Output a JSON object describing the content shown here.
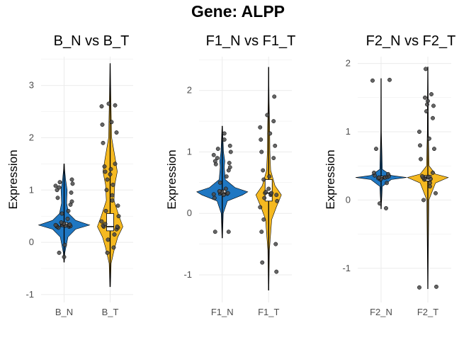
{
  "figure": {
    "title": "Gene: ALPP"
  },
  "colors": {
    "normal": "#1f77c2",
    "tumor": "#f5b921",
    "point": "#4a4a4a",
    "grid": "#ebebeb",
    "box": "#ffffff"
  },
  "chart_data": [
    {
      "type": "violin",
      "title": "B_N vs B_T",
      "ylabel": "Expression",
      "ylim": [
        -1.15,
        3.55
      ],
      "yticks": [
        -1,
        0,
        1,
        2,
        3
      ],
      "categories": [
        "B_N",
        "B_T"
      ],
      "groups": [
        {
          "name": "B_N",
          "color": "#1f77c2",
          "min": -0.38,
          "max": 1.5,
          "box": {
            "q1": 0.3,
            "median": 0.33,
            "q3": 0.38
          },
          "density": [
            [
              -0.38,
              0.01
            ],
            [
              -0.2,
              0.03
            ],
            [
              0.1,
              0.15
            ],
            [
              0.25,
              0.45
            ],
            [
              0.33,
              1.0
            ],
            [
              0.42,
              0.45
            ],
            [
              0.55,
              0.18
            ],
            [
              0.75,
              0.1
            ],
            [
              1.0,
              0.12
            ],
            [
              1.2,
              0.06
            ],
            [
              1.4,
              0.02
            ],
            [
              1.5,
              0.01
            ]
          ],
          "points": [
            -0.28,
            -0.2,
            -0.05,
            0.28,
            0.3,
            0.3,
            0.31,
            0.32,
            0.32,
            0.33,
            0.33,
            0.33,
            0.34,
            0.35,
            0.36,
            0.38,
            0.45,
            0.55,
            0.6,
            0.72,
            0.78,
            0.85,
            0.95,
            1.0,
            1.05,
            1.08,
            1.12,
            1.15,
            1.2
          ]
        },
        {
          "name": "B_T",
          "color": "#f5b921",
          "min": -0.85,
          "max": 3.42,
          "box": {
            "q1": 0.22,
            "median": 0.3,
            "q3": 0.55
          },
          "density": [
            [
              -0.85,
              0.01
            ],
            [
              -0.4,
              0.04
            ],
            [
              -0.1,
              0.18
            ],
            [
              0.1,
              0.3
            ],
            [
              0.3,
              0.5
            ],
            [
              0.5,
              0.35
            ],
            [
              0.8,
              0.15
            ],
            [
              1.1,
              0.18
            ],
            [
              1.35,
              0.28
            ],
            [
              1.6,
              0.2
            ],
            [
              2.0,
              0.06
            ],
            [
              2.5,
              0.04
            ],
            [
              3.0,
              0.02
            ],
            [
              3.42,
              0.005
            ]
          ],
          "points": [
            -0.2,
            -0.1,
            0.05,
            0.15,
            0.25,
            0.28,
            0.3,
            0.3,
            0.32,
            0.35,
            0.4,
            0.5,
            0.6,
            0.7,
            0.8,
            0.9,
            1.0,
            1.1,
            1.2,
            1.3,
            1.35,
            1.4,
            1.45,
            1.5,
            1.9,
            2.1,
            2.25,
            2.3,
            2.6,
            2.62,
            2.65
          ]
        }
      ]
    },
    {
      "type": "violin",
      "title": "F1_N vs F1_T",
      "ylabel": "Expression",
      "ylim": [
        -1.45,
        2.55
      ],
      "yticks": [
        -1,
        0,
        1,
        2
      ],
      "categories": [
        "F1_N",
        "F1_T"
      ],
      "groups": [
        {
          "name": "F1_N",
          "color": "#1f77c2",
          "min": -0.4,
          "max": 1.42,
          "box": {
            "q1": 0.3,
            "median": 0.33,
            "q3": 0.38
          },
          "density": [
            [
              -0.4,
              0.01
            ],
            [
              0.0,
              0.04
            ],
            [
              0.2,
              0.2
            ],
            [
              0.3,
              0.8
            ],
            [
              0.35,
              1.0
            ],
            [
              0.42,
              0.5
            ],
            [
              0.55,
              0.12
            ],
            [
              0.75,
              0.08
            ],
            [
              0.85,
              0.1
            ],
            [
              1.0,
              0.05
            ],
            [
              1.2,
              0.03
            ],
            [
              1.42,
              0.01
            ]
          ],
          "points": [
            -0.3,
            -0.3,
            0.25,
            0.3,
            0.31,
            0.32,
            0.33,
            0.33,
            0.34,
            0.35,
            0.36,
            0.4,
            0.5,
            0.6,
            0.7,
            0.75,
            0.8,
            0.82,
            0.85,
            0.9,
            0.95,
            1.0,
            1.05,
            1.1,
            1.2,
            1.3
          ]
        },
        {
          "name": "F1_T",
          "color": "#f5b921",
          "min": -1.25,
          "max": 2.38,
          "box": {
            "q1": 0.2,
            "median": 0.33,
            "q3": 0.55
          },
          "density": [
            [
              -1.25,
              0.01
            ],
            [
              -0.6,
              0.03
            ],
            [
              -0.1,
              0.12
            ],
            [
              0.1,
              0.3
            ],
            [
              0.3,
              0.5
            ],
            [
              0.45,
              0.25
            ],
            [
              0.7,
              0.08
            ],
            [
              1.0,
              0.05
            ],
            [
              1.4,
              0.04
            ],
            [
              1.8,
              0.02
            ],
            [
              2.38,
              0.005
            ]
          ],
          "points": [
            -0.95,
            -0.8,
            -0.5,
            -0.3,
            -0.1,
            0.1,
            0.2,
            0.25,
            0.3,
            0.3,
            0.32,
            0.33,
            0.33,
            0.35,
            0.4,
            0.55,
            0.6,
            0.7,
            0.9,
            1.0,
            1.1,
            1.2,
            1.3,
            1.4,
            1.5,
            1.6,
            1.9
          ]
        }
      ]
    },
    {
      "type": "violin",
      "title": "F2_N vs F2_T",
      "ylabel": "Expression",
      "ylim": [
        -1.5,
        2.1
      ],
      "yticks": [
        -1,
        0,
        1,
        2
      ],
      "categories": [
        "F2_N",
        "F2_T"
      ],
      "groups": [
        {
          "name": "F2_N",
          "color": "#1f77c2",
          "min": -0.13,
          "max": 1.78,
          "box": {
            "q1": 0.31,
            "median": 0.33,
            "q3": 0.35
          },
          "density": [
            [
              -0.13,
              0.005
            ],
            [
              0.2,
              0.05
            ],
            [
              0.3,
              0.4
            ],
            [
              0.33,
              1.0
            ],
            [
              0.36,
              0.4
            ],
            [
              0.45,
              0.05
            ],
            [
              1.0,
              0.01
            ],
            [
              1.78,
              0.005
            ]
          ],
          "points": [
            -0.12,
            -0.05,
            0.25,
            0.3,
            0.31,
            0.32,
            0.33,
            0.33,
            0.33,
            0.34,
            0.35,
            0.36,
            0.38,
            0.4,
            0.75,
            1.75,
            1.76
          ]
        },
        {
          "name": "F2_T",
          "color": "#f5b921",
          "min": -1.3,
          "max": 1.95,
          "box": {
            "q1": 0.28,
            "median": 0.33,
            "q3": 0.36
          },
          "density": [
            [
              -1.3,
              0.005
            ],
            [
              0.0,
              0.04
            ],
            [
              0.25,
              0.3
            ],
            [
              0.33,
              0.8
            ],
            [
              0.38,
              0.3
            ],
            [
              0.5,
              0.05
            ],
            [
              1.0,
              0.02
            ],
            [
              1.5,
              0.015
            ],
            [
              1.95,
              0.005
            ]
          ],
          "points": [
            -1.28,
            -1.27,
            0.0,
            0.1,
            0.2,
            0.25,
            0.3,
            0.31,
            0.32,
            0.33,
            0.33,
            0.34,
            0.35,
            0.4,
            0.6,
            0.75,
            0.8,
            0.9,
            1.0,
            1.2,
            1.3,
            1.38,
            1.4,
            1.45,
            1.5,
            1.55,
            1.92
          ]
        }
      ]
    }
  ]
}
